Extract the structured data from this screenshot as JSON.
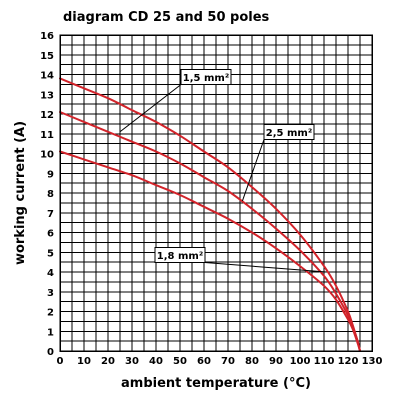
{
  "colors": {
    "series": "#d2232a",
    "grid": "#000000",
    "text": "#000000"
  },
  "chart_data": {
    "type": "line",
    "title": "diagram CD 25 and 50 poles",
    "xlabel": "ambient temperature (°C)",
    "ylabel": "working current (A)",
    "xlim": [
      0,
      130
    ],
    "ylim": [
      0,
      16
    ],
    "xticks": [
      0,
      10,
      20,
      30,
      40,
      50,
      60,
      70,
      80,
      90,
      100,
      110,
      120,
      130
    ],
    "yticks": [
      0,
      1,
      2,
      3,
      4,
      5,
      6,
      7,
      8,
      9,
      10,
      11,
      12,
      13,
      14,
      15,
      16
    ],
    "grid": true,
    "series": [
      {
        "name": "1,5 mm²",
        "x": [
          0,
          10,
          20,
          30,
          40,
          50,
          60,
          70,
          80,
          90,
          100,
          110,
          115,
          120,
          122,
          124,
          125
        ],
        "y": [
          13.8,
          13.3,
          12.8,
          12.2,
          11.6,
          10.9,
          10.1,
          9.3,
          8.3,
          7.2,
          5.9,
          4.3,
          3.3,
          2.0,
          1.3,
          0.5,
          0
        ]
      },
      {
        "name": "2,5 mm²",
        "x": [
          0,
          10,
          20,
          30,
          40,
          50,
          60,
          70,
          80,
          90,
          100,
          110,
          115,
          120,
          122,
          124,
          125
        ],
        "y": [
          12.1,
          11.6,
          11.1,
          10.6,
          10.1,
          9.5,
          8.8,
          8.1,
          7.2,
          6.2,
          5.1,
          3.8,
          2.9,
          1.8,
          1.2,
          0.5,
          0
        ]
      },
      {
        "name": "1,8 mm²",
        "x": [
          0,
          10,
          20,
          30,
          40,
          50,
          60,
          70,
          80,
          90,
          100,
          110,
          115,
          120,
          122,
          124,
          125
        ],
        "y": [
          10.1,
          9.7,
          9.3,
          8.9,
          8.4,
          7.9,
          7.3,
          6.7,
          6.0,
          5.2,
          4.3,
          3.3,
          2.6,
          1.6,
          1.1,
          0.4,
          0
        ]
      }
    ],
    "annotations": [
      {
        "text": "1,5 mm²",
        "target_x": 25,
        "target_y": 11.1
      },
      {
        "text": "2,5 mm²",
        "target_x": 76,
        "target_y": 7.6
      },
      {
        "text": "1,8 mm²",
        "target_x": 111,
        "target_y": 4.0
      }
    ]
  }
}
